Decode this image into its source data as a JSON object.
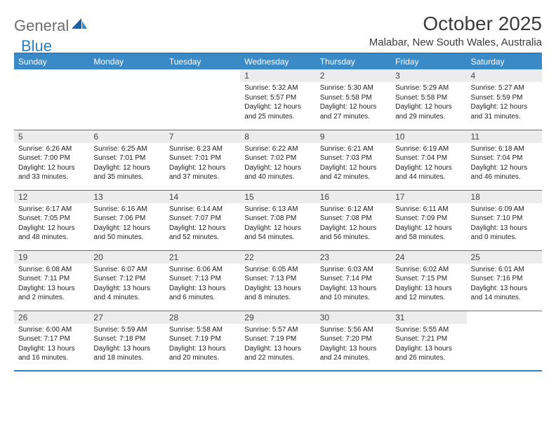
{
  "logo": {
    "part1": "General",
    "part2": "Blue"
  },
  "title": "October 2025",
  "location": "Malabar, New South Wales, Australia",
  "colors": {
    "header_bg": "#3a8ac7",
    "header_text": "#ffffff",
    "border": "#2f7fbf",
    "daynum_bg": "#ececec",
    "logo_gray": "#6a6c6e",
    "logo_blue": "#2b7fc1"
  },
  "day_labels": [
    "Sunday",
    "Monday",
    "Tuesday",
    "Wednesday",
    "Thursday",
    "Friday",
    "Saturday"
  ],
  "weeks": [
    [
      null,
      null,
      null,
      {
        "n": "1",
        "sr": "5:32 AM",
        "ss": "5:57 PM",
        "dl": "12 hours and 25 minutes."
      },
      {
        "n": "2",
        "sr": "5:30 AM",
        "ss": "5:58 PM",
        "dl": "12 hours and 27 minutes."
      },
      {
        "n": "3",
        "sr": "5:29 AM",
        "ss": "5:58 PM",
        "dl": "12 hours and 29 minutes."
      },
      {
        "n": "4",
        "sr": "5:27 AM",
        "ss": "5:59 PM",
        "dl": "12 hours and 31 minutes."
      }
    ],
    [
      {
        "n": "5",
        "sr": "6:26 AM",
        "ss": "7:00 PM",
        "dl": "12 hours and 33 minutes."
      },
      {
        "n": "6",
        "sr": "6:25 AM",
        "ss": "7:01 PM",
        "dl": "12 hours and 35 minutes."
      },
      {
        "n": "7",
        "sr": "6:23 AM",
        "ss": "7:01 PM",
        "dl": "12 hours and 37 minutes."
      },
      {
        "n": "8",
        "sr": "6:22 AM",
        "ss": "7:02 PM",
        "dl": "12 hours and 40 minutes."
      },
      {
        "n": "9",
        "sr": "6:21 AM",
        "ss": "7:03 PM",
        "dl": "12 hours and 42 minutes."
      },
      {
        "n": "10",
        "sr": "6:19 AM",
        "ss": "7:04 PM",
        "dl": "12 hours and 44 minutes."
      },
      {
        "n": "11",
        "sr": "6:18 AM",
        "ss": "7:04 PM",
        "dl": "12 hours and 46 minutes."
      }
    ],
    [
      {
        "n": "12",
        "sr": "6:17 AM",
        "ss": "7:05 PM",
        "dl": "12 hours and 48 minutes."
      },
      {
        "n": "13",
        "sr": "6:16 AM",
        "ss": "7:06 PM",
        "dl": "12 hours and 50 minutes."
      },
      {
        "n": "14",
        "sr": "6:14 AM",
        "ss": "7:07 PM",
        "dl": "12 hours and 52 minutes."
      },
      {
        "n": "15",
        "sr": "6:13 AM",
        "ss": "7:08 PM",
        "dl": "12 hours and 54 minutes."
      },
      {
        "n": "16",
        "sr": "6:12 AM",
        "ss": "7:08 PM",
        "dl": "12 hours and 56 minutes."
      },
      {
        "n": "17",
        "sr": "6:11 AM",
        "ss": "7:09 PM",
        "dl": "12 hours and 58 minutes."
      },
      {
        "n": "18",
        "sr": "6:09 AM",
        "ss": "7:10 PM",
        "dl": "13 hours and 0 minutes."
      }
    ],
    [
      {
        "n": "19",
        "sr": "6:08 AM",
        "ss": "7:11 PM",
        "dl": "13 hours and 2 minutes."
      },
      {
        "n": "20",
        "sr": "6:07 AM",
        "ss": "7:12 PM",
        "dl": "13 hours and 4 minutes."
      },
      {
        "n": "21",
        "sr": "6:06 AM",
        "ss": "7:13 PM",
        "dl": "13 hours and 6 minutes."
      },
      {
        "n": "22",
        "sr": "6:05 AM",
        "ss": "7:13 PM",
        "dl": "13 hours and 8 minutes."
      },
      {
        "n": "23",
        "sr": "6:03 AM",
        "ss": "7:14 PM",
        "dl": "13 hours and 10 minutes."
      },
      {
        "n": "24",
        "sr": "6:02 AM",
        "ss": "7:15 PM",
        "dl": "13 hours and 12 minutes."
      },
      {
        "n": "25",
        "sr": "6:01 AM",
        "ss": "7:16 PM",
        "dl": "13 hours and 14 minutes."
      }
    ],
    [
      {
        "n": "26",
        "sr": "6:00 AM",
        "ss": "7:17 PM",
        "dl": "13 hours and 16 minutes."
      },
      {
        "n": "27",
        "sr": "5:59 AM",
        "ss": "7:18 PM",
        "dl": "13 hours and 18 minutes."
      },
      {
        "n": "28",
        "sr": "5:58 AM",
        "ss": "7:19 PM",
        "dl": "13 hours and 20 minutes."
      },
      {
        "n": "29",
        "sr": "5:57 AM",
        "ss": "7:19 PM",
        "dl": "13 hours and 22 minutes."
      },
      {
        "n": "30",
        "sr": "5:56 AM",
        "ss": "7:20 PM",
        "dl": "13 hours and 24 minutes."
      },
      {
        "n": "31",
        "sr": "5:55 AM",
        "ss": "7:21 PM",
        "dl": "13 hours and 26 minutes."
      },
      null
    ]
  ],
  "labels": {
    "sunrise": "Sunrise:",
    "sunset": "Sunset:",
    "daylight": "Daylight:"
  }
}
